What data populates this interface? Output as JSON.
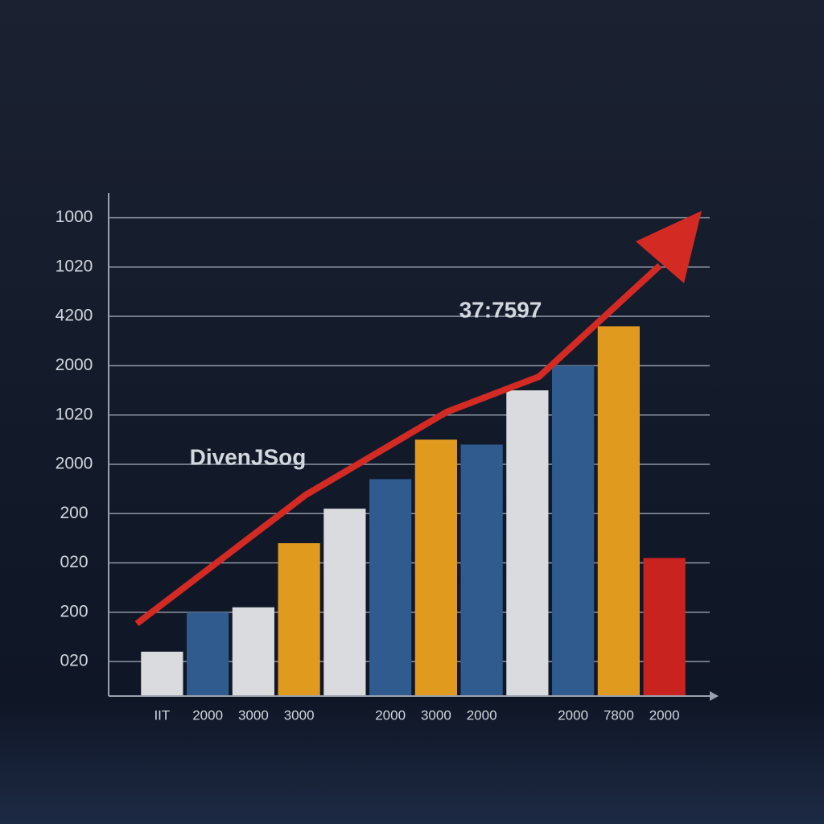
{
  "chart_data": {
    "type": "bar",
    "categories": [
      "IIT",
      "2000",
      "3000",
      "3000",
      null,
      "2000",
      "3000",
      "2000",
      null,
      "2000",
      "7800",
      "2000"
    ],
    "values": [
      1.2,
      2.0,
      2.1,
      3.4,
      4.1,
      4.7,
      5.5,
      5.4,
      6.5,
      7.0,
      7.8,
      3.1
    ],
    "colors": [
      "#d9dbde",
      "#2f5b8f",
      "#d9dbde",
      "#e09a1e",
      "#d9dbde",
      "#2f5b8f",
      "#e09a1e",
      "#2f5b8f",
      "#d9dbde",
      "#2f5b8f",
      "#e09a1e",
      "#c8231f"
    ],
    "ylim": [
      0.3,
      10.5
    ],
    "yticks": [
      {
        "value": 1,
        "label": "020"
      },
      {
        "value": 2,
        "label": "200"
      },
      {
        "value": 3,
        "label": "020"
      },
      {
        "value": 4,
        "label": "200"
      },
      {
        "value": 5,
        "label": "2000"
      },
      {
        "value": 6,
        "label": "1020"
      },
      {
        "value": 7,
        "label": "2000"
      },
      {
        "value": 8,
        "label": "4200"
      },
      {
        "value": 9,
        "label": "1020"
      },
      {
        "value": 10,
        "label": "1000"
      }
    ],
    "grid": true,
    "annotations": [
      "37:7597",
      "DivenJSog"
    ]
  }
}
